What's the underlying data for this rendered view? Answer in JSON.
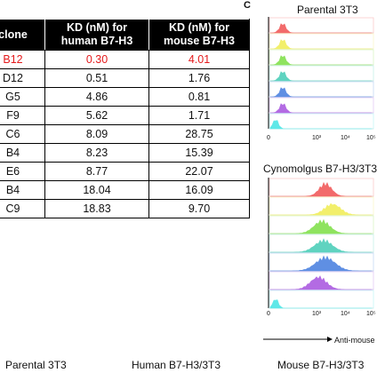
{
  "table": {
    "headers": [
      "clone",
      "KD (nM) for\nhuman B7-H3",
      "KD (nM) for\nmouse B7-H3"
    ],
    "header_lines": [
      [
        "clone"
      ],
      [
        "KD (nM) for",
        "human B7-H3"
      ],
      [
        "KD (nM) for",
        "mouse B7-H3"
      ]
    ],
    "rows": [
      {
        "clone": "B12",
        "human": "0.30",
        "mouse": "4.01",
        "highlight": true
      },
      {
        "clone": "D12",
        "human": "0.51",
        "mouse": "1.76"
      },
      {
        "clone": "G5",
        "human": "4.86",
        "mouse": "0.81"
      },
      {
        "clone": "F9",
        "human": "5.62",
        "mouse": "1.71"
      },
      {
        "clone": "C6",
        "human": "8.09",
        "mouse": "28.75"
      },
      {
        "clone": "B4",
        "human": "8.23",
        "mouse": "15.39"
      },
      {
        "clone": "E6",
        "human": "8.77",
        "mouse": "22.07"
      },
      {
        "clone": "B4",
        "human": "18.04",
        "mouse": "16.09"
      },
      {
        "clone": "C9",
        "human": "18.83",
        "mouse": "9.70"
      }
    ],
    "highlight_color": "#e41a1c"
  },
  "panel_c": {
    "letter": "C",
    "top_title": "Parental 3T3",
    "middle_title": "Cynomolgus B7-H3/3T3",
    "x_ticks": [
      "0",
      "10³",
      "10⁴",
      "10⁵"
    ],
    "x_axis_label": "Anti-mouse",
    "colors": [
      "#f26b6b",
      "#f2ef6b",
      "#8fe35f",
      "#5fd3c0",
      "#5f8fe3",
      "#b36be3",
      "#5fe8e8",
      "#777777"
    ]
  },
  "bottom_labels": {
    "left": "Parental 3T3",
    "middle": "Human B7-H3/3T3",
    "right": "Mouse B7-H3/3T3"
  }
}
